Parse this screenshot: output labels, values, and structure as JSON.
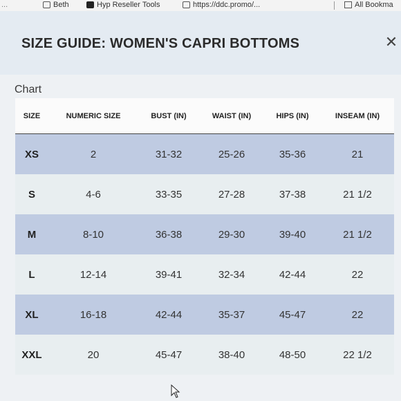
{
  "bookmarks": [
    {
      "label": "...",
      "icon": "page-icon"
    },
    {
      "label": "Beth",
      "icon": "folder-icon"
    },
    {
      "label": "Hyp Reseller Tools",
      "icon": "app-tile-icon"
    },
    {
      "label": "https://ddc.promo/...",
      "icon": "link-icon"
    },
    {
      "label": "All Bookma",
      "icon": "bookmarks-folder-icon"
    }
  ],
  "modal": {
    "title": "SIZE GUIDE: WOMEN'S CAPRI BOTTOMS",
    "close_glyph": "✕",
    "section_label": "Chart"
  },
  "table": {
    "headers": [
      "SIZE",
      "NUMERIC SIZE",
      "BUST (IN)",
      "WAIST (IN)",
      "HIPS (IN)",
      "INSEAM (IN)"
    ],
    "rows": [
      [
        "XS",
        "2",
        "31-32",
        "25-26",
        "35-36",
        "21"
      ],
      [
        "S",
        "4-6",
        "33-35",
        "27-28",
        "37-38",
        "21 1/2"
      ],
      [
        "M",
        "8-10",
        "36-38",
        "29-30",
        "39-40",
        "21 1/2"
      ],
      [
        "L",
        "12-14",
        "39-41",
        "32-34",
        "42-44",
        "22"
      ],
      [
        "XL",
        "16-18",
        "42-44",
        "35-37",
        "45-47",
        "22"
      ],
      [
        "XXL",
        "20",
        "45-47",
        "38-40",
        "48-50",
        "22 1/2"
      ]
    ]
  }
}
